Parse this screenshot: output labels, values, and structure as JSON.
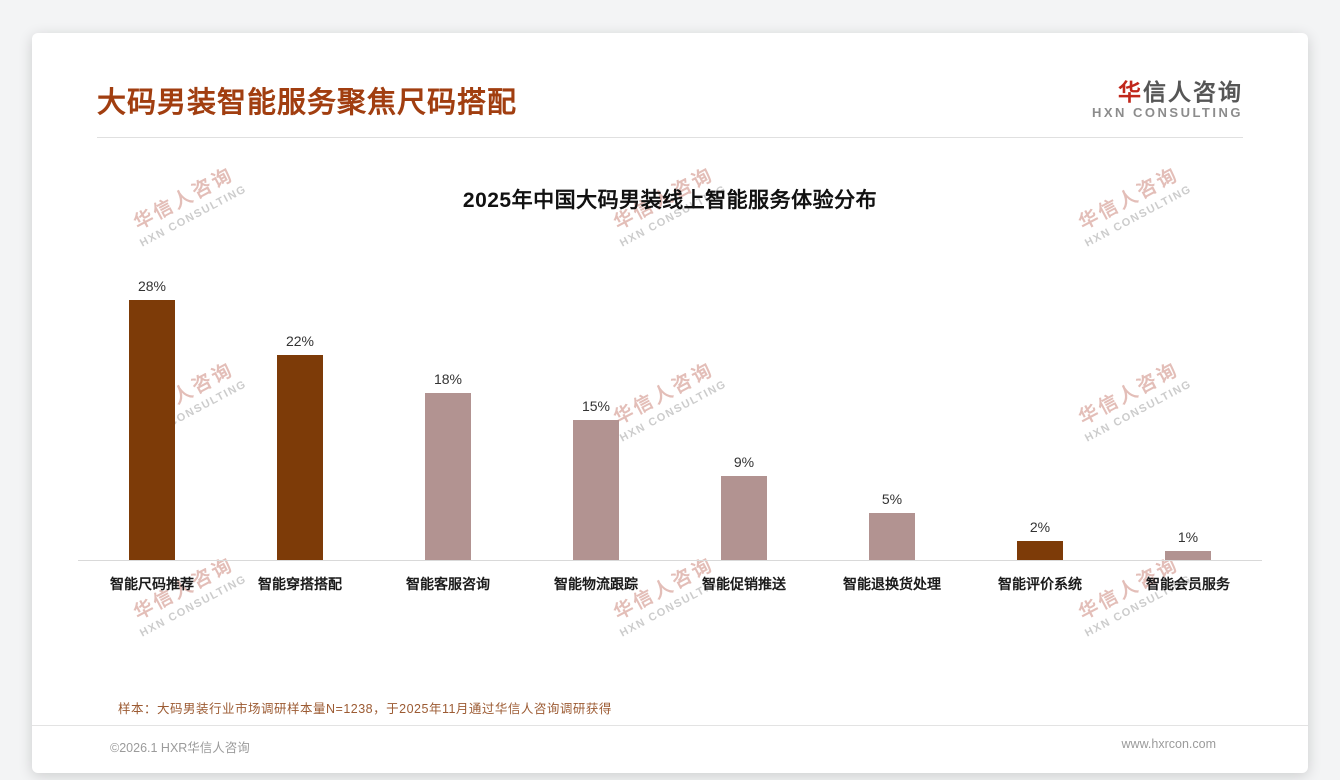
{
  "header": {
    "title": "大码男装智能服务聚焦尺码搭配",
    "logo": {
      "cn_first": "华",
      "cn_rest": "信人咨询",
      "en": "HXN CONSULTING"
    }
  },
  "watermark": {
    "cn": "华信人咨询",
    "en": "HXN CONSULTING"
  },
  "chart_data": {
    "type": "bar",
    "title": "2025年中国大码男装线上智能服务体验分布",
    "categories": [
      "智能尺码推荐",
      "智能穿搭搭配",
      "智能客服咨询",
      "智能物流跟踪",
      "智能促销推送",
      "智能退换货处理",
      "智能评价系统",
      "智能会员服务"
    ],
    "values": [
      28,
      22,
      18,
      15,
      9,
      5,
      2,
      1
    ],
    "unit": "%",
    "bar_colors": [
      "#7d3b08",
      "#7d3b08",
      "#b29391",
      "#b29391",
      "#b29391",
      "#b29391",
      "#7d3b08",
      "#b29391"
    ],
    "ylim": [
      0,
      30
    ],
    "grid": false,
    "legend": false,
    "xlabel": "",
    "ylabel": ""
  },
  "note": {
    "text": "样本：大码男装行业市场调研样本量N=1238，于2025年11月通过华信人咨询调研获得"
  },
  "footer": {
    "left": "©2026.1 HXR华信人咨询",
    "right": "www.hxrcon.com"
  },
  "colors": {
    "page_title": "#a13e10",
    "dark_bar": "#7d3b08",
    "light_bar": "#b29391",
    "note_text": "#9c5b33",
    "logo_red": "#c1271b",
    "watermark_cn": "#c97f73",
    "watermark_en": "#9a9a9a"
  }
}
